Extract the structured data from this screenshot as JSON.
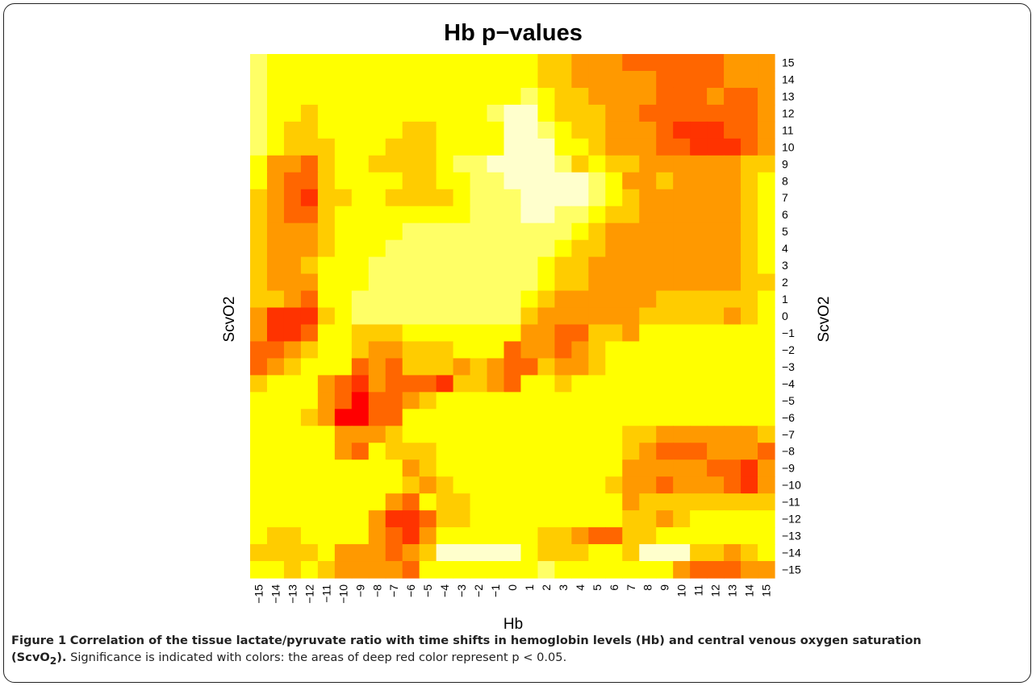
{
  "figure": {
    "caption_label": "Figure 1",
    "caption_bold_a": "Correlation of the tissue lactate/pyruvate ratio with time shifts in hemoglobin levels (Hb) and central venous oxygen saturation",
    "caption_bold_b_pre": "(ScvO",
    "caption_bold_b_sub": "2",
    "caption_bold_b_post": ").",
    "caption_text": " Significance is indicated with colors: the areas of deep red color represent p < 0.05."
  },
  "chart_data": {
    "type": "heatmap",
    "title": "Hb p−values",
    "xlabel": "Hb",
    "ylabel_left": "ScvO2",
    "ylabel_right": "ScvO2",
    "x_ticks": [
      "−15",
      "−14",
      "−13",
      "−12",
      "−11",
      "−10",
      "−9",
      "−8",
      "−7",
      "−6",
      "−5",
      "−4",
      "−3",
      "−2",
      "−1",
      "0",
      "1",
      "2",
      "3",
      "4",
      "5",
      "6",
      "7",
      "8",
      "9",
      "10",
      "11",
      "12",
      "13",
      "14",
      "15"
    ],
    "y_ticks_top_to_bottom": [
      "15",
      "14",
      "13",
      "12",
      "11",
      "10",
      "9",
      "8",
      "7",
      "6",
      "5",
      "4",
      "3",
      "2",
      "1",
      "0",
      "−1",
      "−2",
      "−3",
      "−4",
      "−5",
      "−6",
      "−7",
      "−8",
      "−9",
      "−10",
      "−11",
      "−12",
      "−13",
      "−14",
      "−15"
    ],
    "color_scale": {
      "meaning": "Significance is indicated with colors: deep red represents p < 0.05",
      "levels": [
        "#FF0000",
        "#FF3300",
        "#FF6600",
        "#FF9900",
        "#FFCC00",
        "#FFFF00",
        "#FFFF66",
        "#FFFFCC"
      ]
    },
    "levels_rows_top_to_bottom": [
      "6555555555555555544333222222333",
      "6555555555555555544333332222333",
      "6555555555555555654433332223223",
      "6554555555555567754443322222223",
      "6544555554455557765443332111223",
      "6544455544455557775543332211123",
      "5332455444456677776454433333344",
      "5322455554455667777765334333345",
      "4321445544445666777765433333345",
      "4322455555555666776654433333345",
      "4333455556666666666543333333345",
      "4333455566666666665443333333345",
      "4334555666666666654433333333345",
      "4333555666666666654433333333344",
      "4432556666666666543333334444445",
      "3111456666666666433333344444345",
      "3112554445555555332244355555555",
      "2234554334445552332345555555555",
      "2345552324443432243345555555555",
      "4555321322214432554555555555555",
      "5555320223455555555555555555555",
      "5554300225555555555555555555555",
      "5555533345555555555555443333334",
      "5555532544455555555555432223332",
      "5555555553455555555555333332213",
      "5555555554345555555554332333213",
      "5555555532544555555555344444444",
      "5555555311244555555555443455555",
      "5445555321355555544322445555555",
      "4444533323477777544455477744345",
      "5545433332555555565555555322233"
    ]
  }
}
